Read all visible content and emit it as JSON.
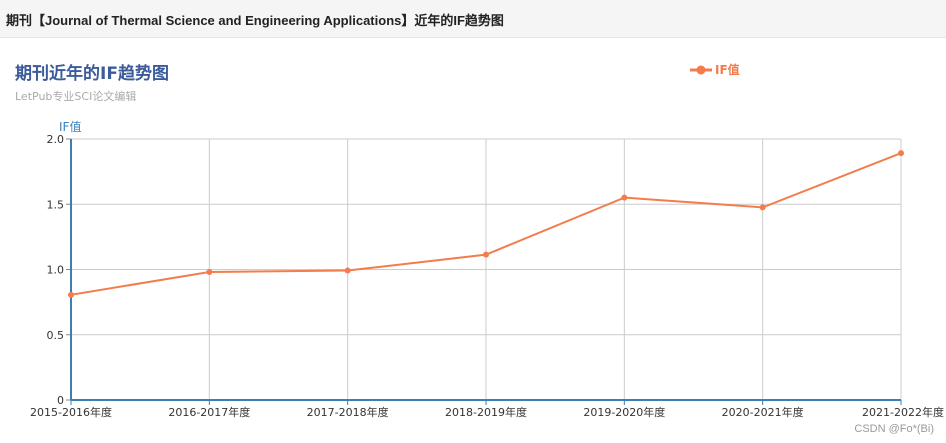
{
  "header": {
    "title": "期刊【Journal of Thermal Science and Engineering Applications】近年的IF趋势图"
  },
  "chart_data": {
    "type": "line",
    "title": "期刊近年的IF趋势图",
    "subtitle": "LetPub专业SCI论文编辑",
    "xlabel": "",
    "ylabel": "IF值",
    "categories": [
      "2015-2016年度",
      "2016-2017年度",
      "2017-2018年度",
      "2018-2019年度",
      "2019-2020年度",
      "2020-2021年度",
      "2021-2022年度"
    ],
    "series": [
      {
        "name": "IF值",
        "values": [
          0.806,
          0.981,
          0.992,
          1.114,
          1.551,
          1.476,
          1.892
        ],
        "color": "#f47c4c"
      }
    ],
    "ylim": [
      0,
      2
    ],
    "yticks": [
      "0",
      "0.5",
      "1.0",
      "1.5",
      "2.0"
    ],
    "grid": true,
    "legend_position": "top-right"
  },
  "watermark": "CSDN @Fo*(Bi)"
}
